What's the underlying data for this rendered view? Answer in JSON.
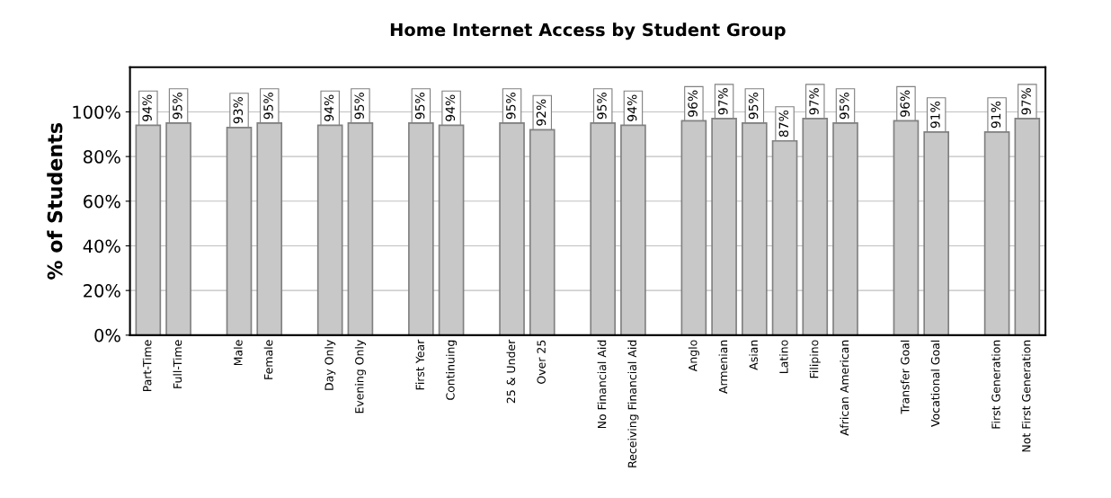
{
  "chart_data": {
    "type": "bar",
    "title": "Home Internet Access by Student Group",
    "ylabel": "% of Students",
    "categories": [
      "Part-Time",
      "Full-Time",
      null,
      "Male",
      "Female",
      null,
      "Day Only",
      "Evening Only",
      null,
      "First Year",
      "Continuing",
      null,
      "25 & Under",
      "Over 25",
      null,
      "No Financial Aid",
      "Receiving Financial Aid",
      null,
      "Anglo",
      "Armenian",
      "Asian",
      "Latino",
      "Filipino",
      "African American",
      null,
      "Transfer Goal",
      "Vocational Goal",
      null,
      "First Generation",
      "Not First Generation"
    ],
    "values": [
      94,
      95,
      null,
      93,
      95,
      null,
      94,
      95,
      null,
      95,
      94,
      null,
      95,
      92,
      null,
      95,
      94,
      null,
      96,
      97,
      95,
      87,
      97,
      95,
      null,
      96,
      91,
      null,
      91,
      97
    ],
    "value_labels": [
      "94%",
      "95%",
      null,
      "93%",
      "95%",
      null,
      "94%",
      "95%",
      null,
      "95%",
      "94%",
      null,
      "95%",
      "92%",
      null,
      "95%",
      "94%",
      null,
      "96%",
      "97%",
      "95%",
      "87%",
      "97%",
      "95%",
      null,
      "96%",
      "91%",
      null,
      "91%",
      "97%"
    ],
    "color": "#c8c8c8",
    "ylim": [
      0,
      120
    ],
    "yticks": [
      {
        "value": 0,
        "label": "0%"
      },
      {
        "value": 20,
        "label": "20%"
      },
      {
        "value": 40,
        "label": "40%"
      },
      {
        "value": 60,
        "label": "60%"
      },
      {
        "value": 80,
        "label": "80%"
      },
      {
        "value": 100,
        "label": "100%"
      }
    ],
    "grid": "y"
  }
}
